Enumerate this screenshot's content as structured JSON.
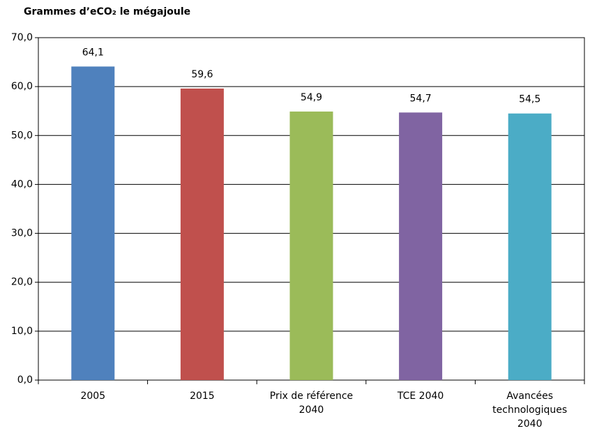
{
  "chart_data": {
    "type": "bar",
    "y_label": "Grammes d’eCO₂ le mégajoule",
    "categories": [
      "2005",
      "2015",
      "Prix de référence 2040",
      "TCE 2040",
      "Avancées technologiques 2040"
    ],
    "values": [
      64.1,
      59.6,
      54.9,
      54.7,
      54.5
    ],
    "value_labels": [
      "64,1",
      "59,6",
      "54,9",
      "54,7",
      "54,5"
    ],
    "colors": [
      "#4f81bd",
      "#c0504d",
      "#9bbb59",
      "#8064a2",
      "#4bacc6"
    ],
    "ylim": [
      0,
      70
    ],
    "yticks": [
      {
        "value": 0,
        "label": "0,0"
      },
      {
        "value": 10,
        "label": "10,0"
      },
      {
        "value": 20,
        "label": "20,0"
      },
      {
        "value": 30,
        "label": "30,0"
      },
      {
        "value": 40,
        "label": "40,0"
      },
      {
        "value": 50,
        "label": "50,0"
      },
      {
        "value": 60,
        "label": "60,0"
      },
      {
        "value": 70,
        "label": "70,0"
      }
    ],
    "grid": true
  }
}
